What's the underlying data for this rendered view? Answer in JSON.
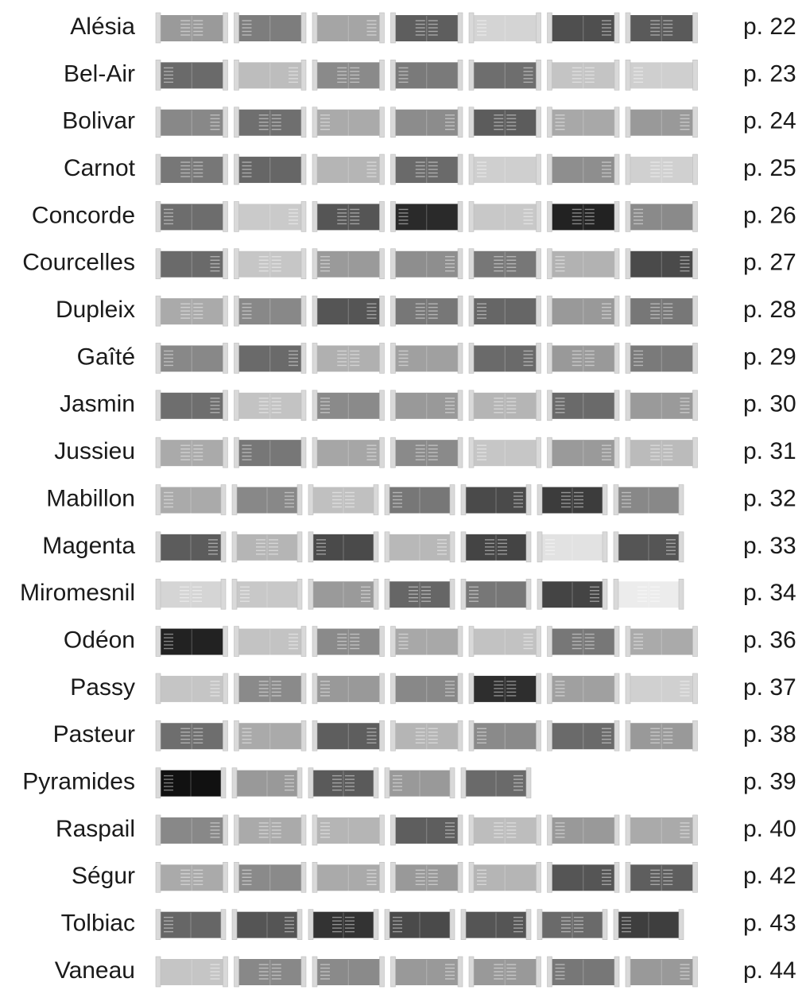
{
  "rows": [
    {
      "name": "Alésia",
      "page": "p. 22"
    },
    {
      "name": "Bel-Air",
      "page": "p. 23"
    },
    {
      "name": "Bolivar",
      "page": "p. 24"
    },
    {
      "name": "Carnot",
      "page": "p. 25"
    },
    {
      "name": "Concorde",
      "page": "p. 26"
    },
    {
      "name": "Courcelles",
      "page": "p. 27"
    },
    {
      "name": "Dupleix",
      "page": "p. 28"
    },
    {
      "name": "Gaîté",
      "page": "p. 29"
    },
    {
      "name": "Jasmin",
      "page": "p. 30"
    },
    {
      "name": "Jussieu",
      "page": "p. 31"
    },
    {
      "name": "Mabillon",
      "page": "p. 32"
    },
    {
      "name": "Magenta",
      "page": "p. 33"
    },
    {
      "name": "Miromesnil",
      "page": "p. 34"
    },
    {
      "name": "Odéon",
      "page": "p. 36"
    },
    {
      "name": "Passy",
      "page": "p. 37"
    },
    {
      "name": "Pasteur",
      "page": "p. 38"
    },
    {
      "name": "Pyramides",
      "page": "p. 39"
    },
    {
      "name": "Raspail",
      "page": "p. 40"
    },
    {
      "name": "Ségur",
      "page": "p. 42"
    },
    {
      "name": "Tolbiac",
      "page": "p. 43"
    },
    {
      "name": "Vaneau",
      "page": "p. 44"
    }
  ]
}
